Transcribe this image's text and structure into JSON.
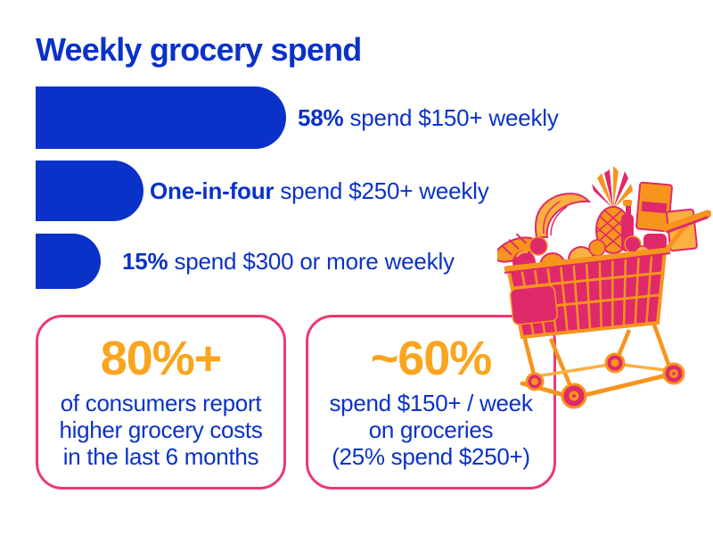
{
  "colors": {
    "blue": "#0A32C8",
    "orange": "#F9A51D",
    "pink": "#F0386E",
    "cart_pink": "#E0296B",
    "cart_orange": "#F7941D",
    "cart_gold": "#FBB040"
  },
  "header": {
    "title": "Weekly grocery spend"
  },
  "chart_data": {
    "type": "bar",
    "orientation": "horizontal",
    "title": "Weekly grocery spend",
    "unit": "% of consumers",
    "categories": [
      "spend $150+ weekly",
      "spend $250+ weekly",
      "spend $300 or more weekly"
    ],
    "values": [
      58,
      25,
      15
    ],
    "max_value": 58,
    "bar_color": "#0A32C8",
    "grid": false,
    "bars": [
      {
        "value": 58,
        "label_bold": "58%",
        "label_rest": "spend $150+ weekly"
      },
      {
        "value": 25,
        "label_bold": "One-in-four",
        "label_rest": "spend $250+ weekly"
      },
      {
        "value": 15,
        "label_bold": "15%",
        "label_rest": "spend $300 or more weekly"
      }
    ]
  },
  "stat_cards": [
    {
      "stat": "80%+",
      "lines": [
        "of consumers report",
        "higher grocery costs",
        "in the last 6 months"
      ]
    },
    {
      "stat": "~60%",
      "lines": [
        "spend $150+ / week",
        "on groceries",
        "(25% spend $250+)"
      ]
    }
  ],
  "illustration": {
    "name": "grocery-cart",
    "description": "shopping cart full of groceries, pink-orange duotone"
  }
}
